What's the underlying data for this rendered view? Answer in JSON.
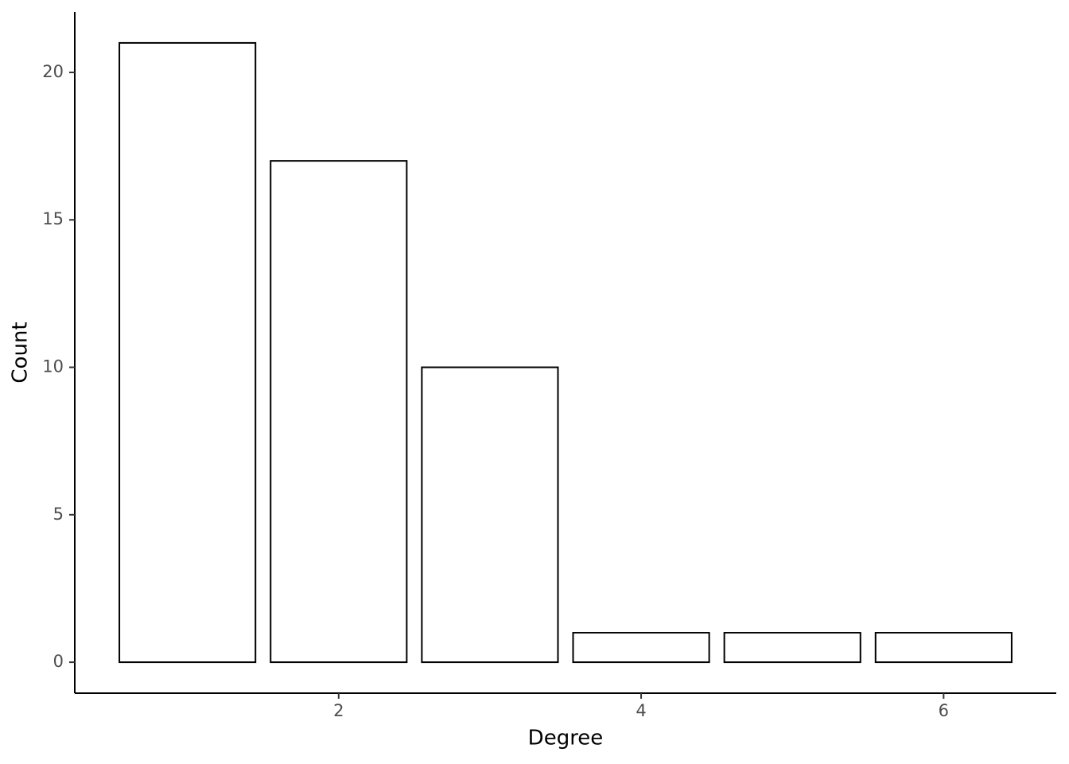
{
  "chart_data": {
    "type": "bar",
    "x": [
      1,
      2,
      3,
      4,
      5,
      6
    ],
    "values": [
      21,
      17,
      10,
      1,
      1,
      1
    ],
    "color": "#ffffff",
    "edgecolor": "#000000",
    "xlabel": "Degree",
    "ylabel": "Count",
    "xlim": [
      0.255,
      6.745
    ],
    "xticks": [
      2,
      4,
      6
    ],
    "ylim": [
      -1.05,
      22.05
    ],
    "yticks": [
      0,
      5,
      10,
      15,
      20
    ],
    "grid": false
  }
}
